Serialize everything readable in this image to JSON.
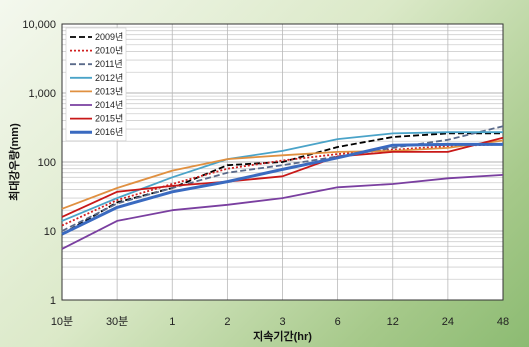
{
  "chart_data": {
    "type": "line",
    "xlabel": "지속기간(hr)",
    "ylabel": "최대강우량(mm)",
    "yscale": "log",
    "ylim": [
      1,
      10000
    ],
    "grid": true,
    "legend_position": "top-left",
    "categories": [
      "10분",
      "30분",
      "1",
      "2",
      "3",
      "6",
      "12",
      "24",
      "48"
    ],
    "y_ticks": [
      "1",
      "10",
      "100",
      "1,000",
      "10,000"
    ],
    "series": [
      {
        "name": "2009년",
        "color": "#000000",
        "dash": "dashed",
        "values": [
          9,
          26,
          42,
          90,
          100,
          165,
          230,
          260,
          260
        ]
      },
      {
        "name": "2010년",
        "color": "#d02020",
        "dash": "dotted",
        "values": [
          12,
          28,
          48,
          80,
          105,
          130,
          150,
          170,
          180
        ]
      },
      {
        "name": "2011년",
        "color": "#5a6a8a",
        "dash": "dashed",
        "values": [
          10,
          25,
          42,
          70,
          90,
          120,
          160,
          210,
          330
        ]
      },
      {
        "name": "2012년",
        "color": "#4aa3c8",
        "dash": "solid",
        "values": [
          14,
          30,
          60,
          110,
          145,
          215,
          260,
          270,
          270
        ]
      },
      {
        "name": "2013년",
        "color": "#e09040",
        "dash": "solid",
        "values": [
          21,
          42,
          75,
          110,
          125,
          140,
          145,
          160,
          205
        ]
      },
      {
        "name": "2014년",
        "color": "#7a3fa0",
        "dash": "solid",
        "values": [
          5.5,
          14,
          20,
          24,
          30,
          43,
          48,
          58,
          65
        ]
      },
      {
        "name": "2015년",
        "color": "#c81818",
        "dash": "solid",
        "values": [
          16,
          37,
          45,
          52,
          62,
          120,
          140,
          140,
          225
        ]
      },
      {
        "name": "2016년",
        "color": "#3a6ac0",
        "dash": "solid-thick",
        "values": [
          9,
          22,
          37,
          52,
          78,
          115,
          175,
          180,
          180
        ]
      }
    ]
  }
}
